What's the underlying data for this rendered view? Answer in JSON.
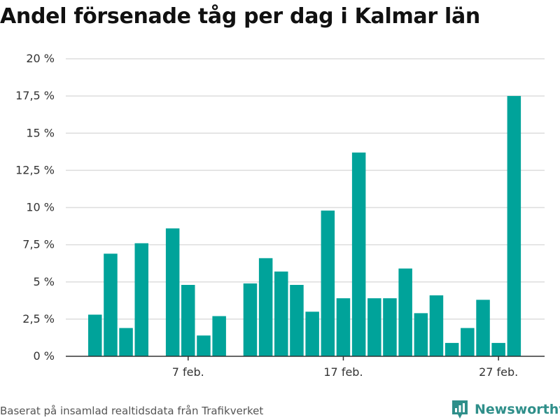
{
  "title": "Andel försenade tåg per dag i Kalmar län",
  "footer": {
    "source": "Baserat på insamlad realtidsdata från Trafikverket",
    "brand": "Newsworthy"
  },
  "colors": {
    "bar": "#00a39a",
    "grid": "#dddddd",
    "axis": "#333333",
    "brand": "#2f8f8a"
  },
  "chart_data": {
    "type": "bar",
    "categories": [
      "1 feb.",
      "2 feb.",
      "3 feb.",
      "4 feb.",
      "5 feb.",
      "6 feb.",
      "7 feb.",
      "8 feb.",
      "9 feb.",
      "10 feb.",
      "11 feb.",
      "12 feb.",
      "13 feb.",
      "14 feb.",
      "15 feb.",
      "16 feb.",
      "17 feb.",
      "18 feb.",
      "19 feb.",
      "20 feb.",
      "21 feb.",
      "22 feb.",
      "23 feb.",
      "24 feb.",
      "25 feb.",
      "26 feb.",
      "27 feb.",
      "28 feb."
    ],
    "values": [
      2.8,
      6.9,
      1.9,
      7.6,
      null,
      8.6,
      4.8,
      1.4,
      2.7,
      null,
      4.9,
      6.6,
      5.7,
      4.8,
      3.0,
      9.8,
      3.9,
      13.7,
      3.9,
      3.9,
      5.9,
      2.9,
      4.1,
      0.9,
      1.9,
      3.8,
      0.9,
      17.5
    ],
    "xtick_labels": [
      "7 feb.",
      "17 feb.",
      "27 feb."
    ],
    "xtick_categories": [
      "7 feb.",
      "17 feb.",
      "27 feb."
    ],
    "ytick_values": [
      0,
      2.5,
      5,
      7.5,
      10,
      12.5,
      15,
      17.5,
      20
    ],
    "ytick_labels": [
      "0 %",
      "2,5 %",
      "5 %",
      "7,5 %",
      "10 %",
      "12,5 %",
      "15 %",
      "17,5 %",
      "20 %"
    ],
    "ylim": [
      0,
      20
    ],
    "grid": true,
    "legend": "none"
  }
}
